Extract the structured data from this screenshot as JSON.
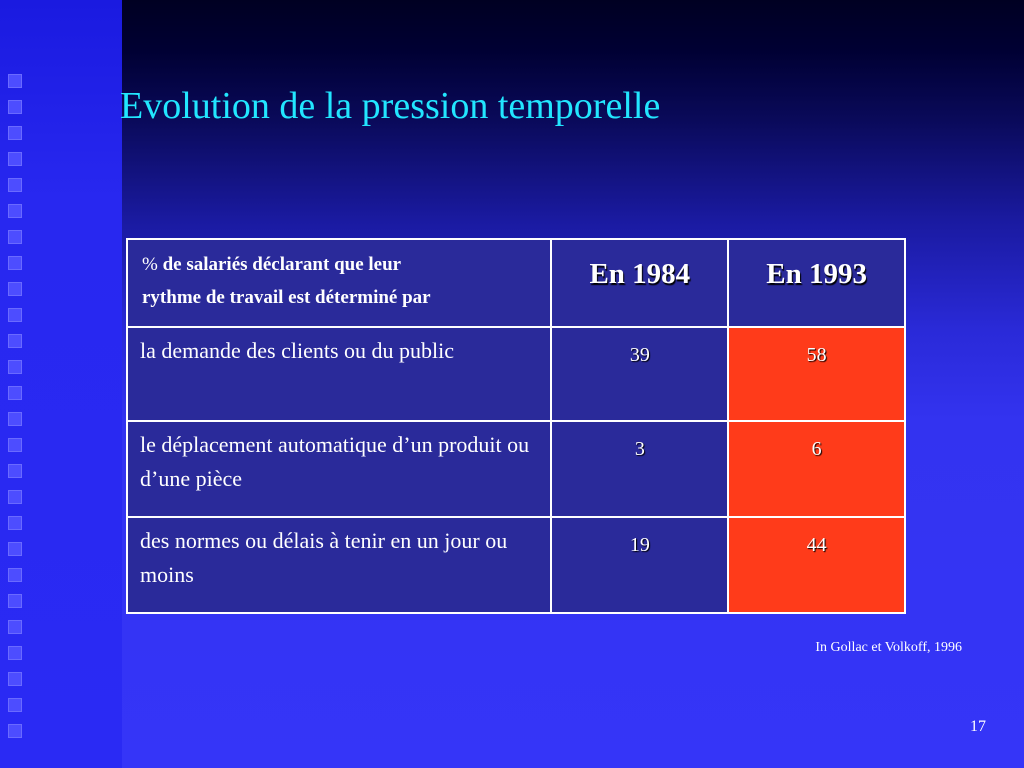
{
  "slide": {
    "title": "Evolution de la pression temporelle",
    "page_number": "17",
    "source": "In Gollac et Volkoff, 1996"
  },
  "table": {
    "header": {
      "pct_symbol": "%",
      "description_line1": " de salariés déclarant que leur",
      "description_line2": "rythme de travail est déterminé par",
      "col_1984": "En 1984",
      "col_1993": "En 1993"
    },
    "rows": [
      {
        "label": "la demande des clients ou du public",
        "v1984": "39",
        "v1993": "58"
      },
      {
        "label": "le déplacement automatique d’un produit ou d’une pièce",
        "v1984": "3",
        "v1993": "6"
      },
      {
        "label": "des normes ou délais à tenir en un jour ou moins",
        "v1984": "19",
        "v1993": "44"
      }
    ]
  },
  "colors": {
    "title": "#22e6ff",
    "cell_blue": "#2a2a9a",
    "cell_highlight": "#ff3b1a",
    "text": "#ffffff"
  }
}
